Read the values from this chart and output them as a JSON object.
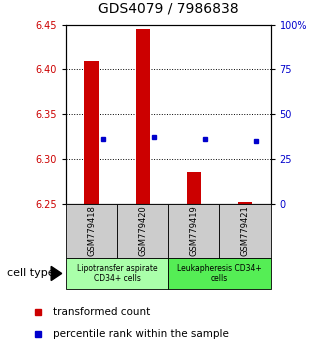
{
  "title": "GDS4079 / 7986838",
  "samples": [
    "GSM779418",
    "GSM779420",
    "GSM779419",
    "GSM779421"
  ],
  "red_values": [
    6.41,
    6.445,
    6.285,
    6.252
  ],
  "blue_values": [
    6.322,
    6.324,
    6.322,
    6.32
  ],
  "ylim_left": [
    6.25,
    6.45
  ],
  "ylim_right": [
    0,
    100
  ],
  "yticks_left": [
    6.25,
    6.3,
    6.35,
    6.4,
    6.45
  ],
  "yticks_right": [
    0,
    25,
    50,
    75,
    100
  ],
  "ytick_labels_right": [
    "0",
    "25",
    "50",
    "75",
    "100%"
  ],
  "base": 6.25,
  "grid_yticks": [
    6.3,
    6.35,
    6.4
  ],
  "group1_label": "Lipotransfer aspirate\nCD34+ cells",
  "group2_label": "Leukapheresis CD34+\ncells",
  "cell_type_label": "cell type",
  "legend1": "transformed count",
  "legend2": "percentile rank within the sample",
  "red_color": "#cc0000",
  "blue_color": "#0000cc",
  "group1_bg": "#aaffaa",
  "group2_bg": "#55ee55",
  "sample_bg": "#cccccc",
  "title_fontsize": 10,
  "tick_fontsize": 7,
  "label_fontsize": 6,
  "legend_fontsize": 7.5,
  "cell_type_fontsize": 8
}
